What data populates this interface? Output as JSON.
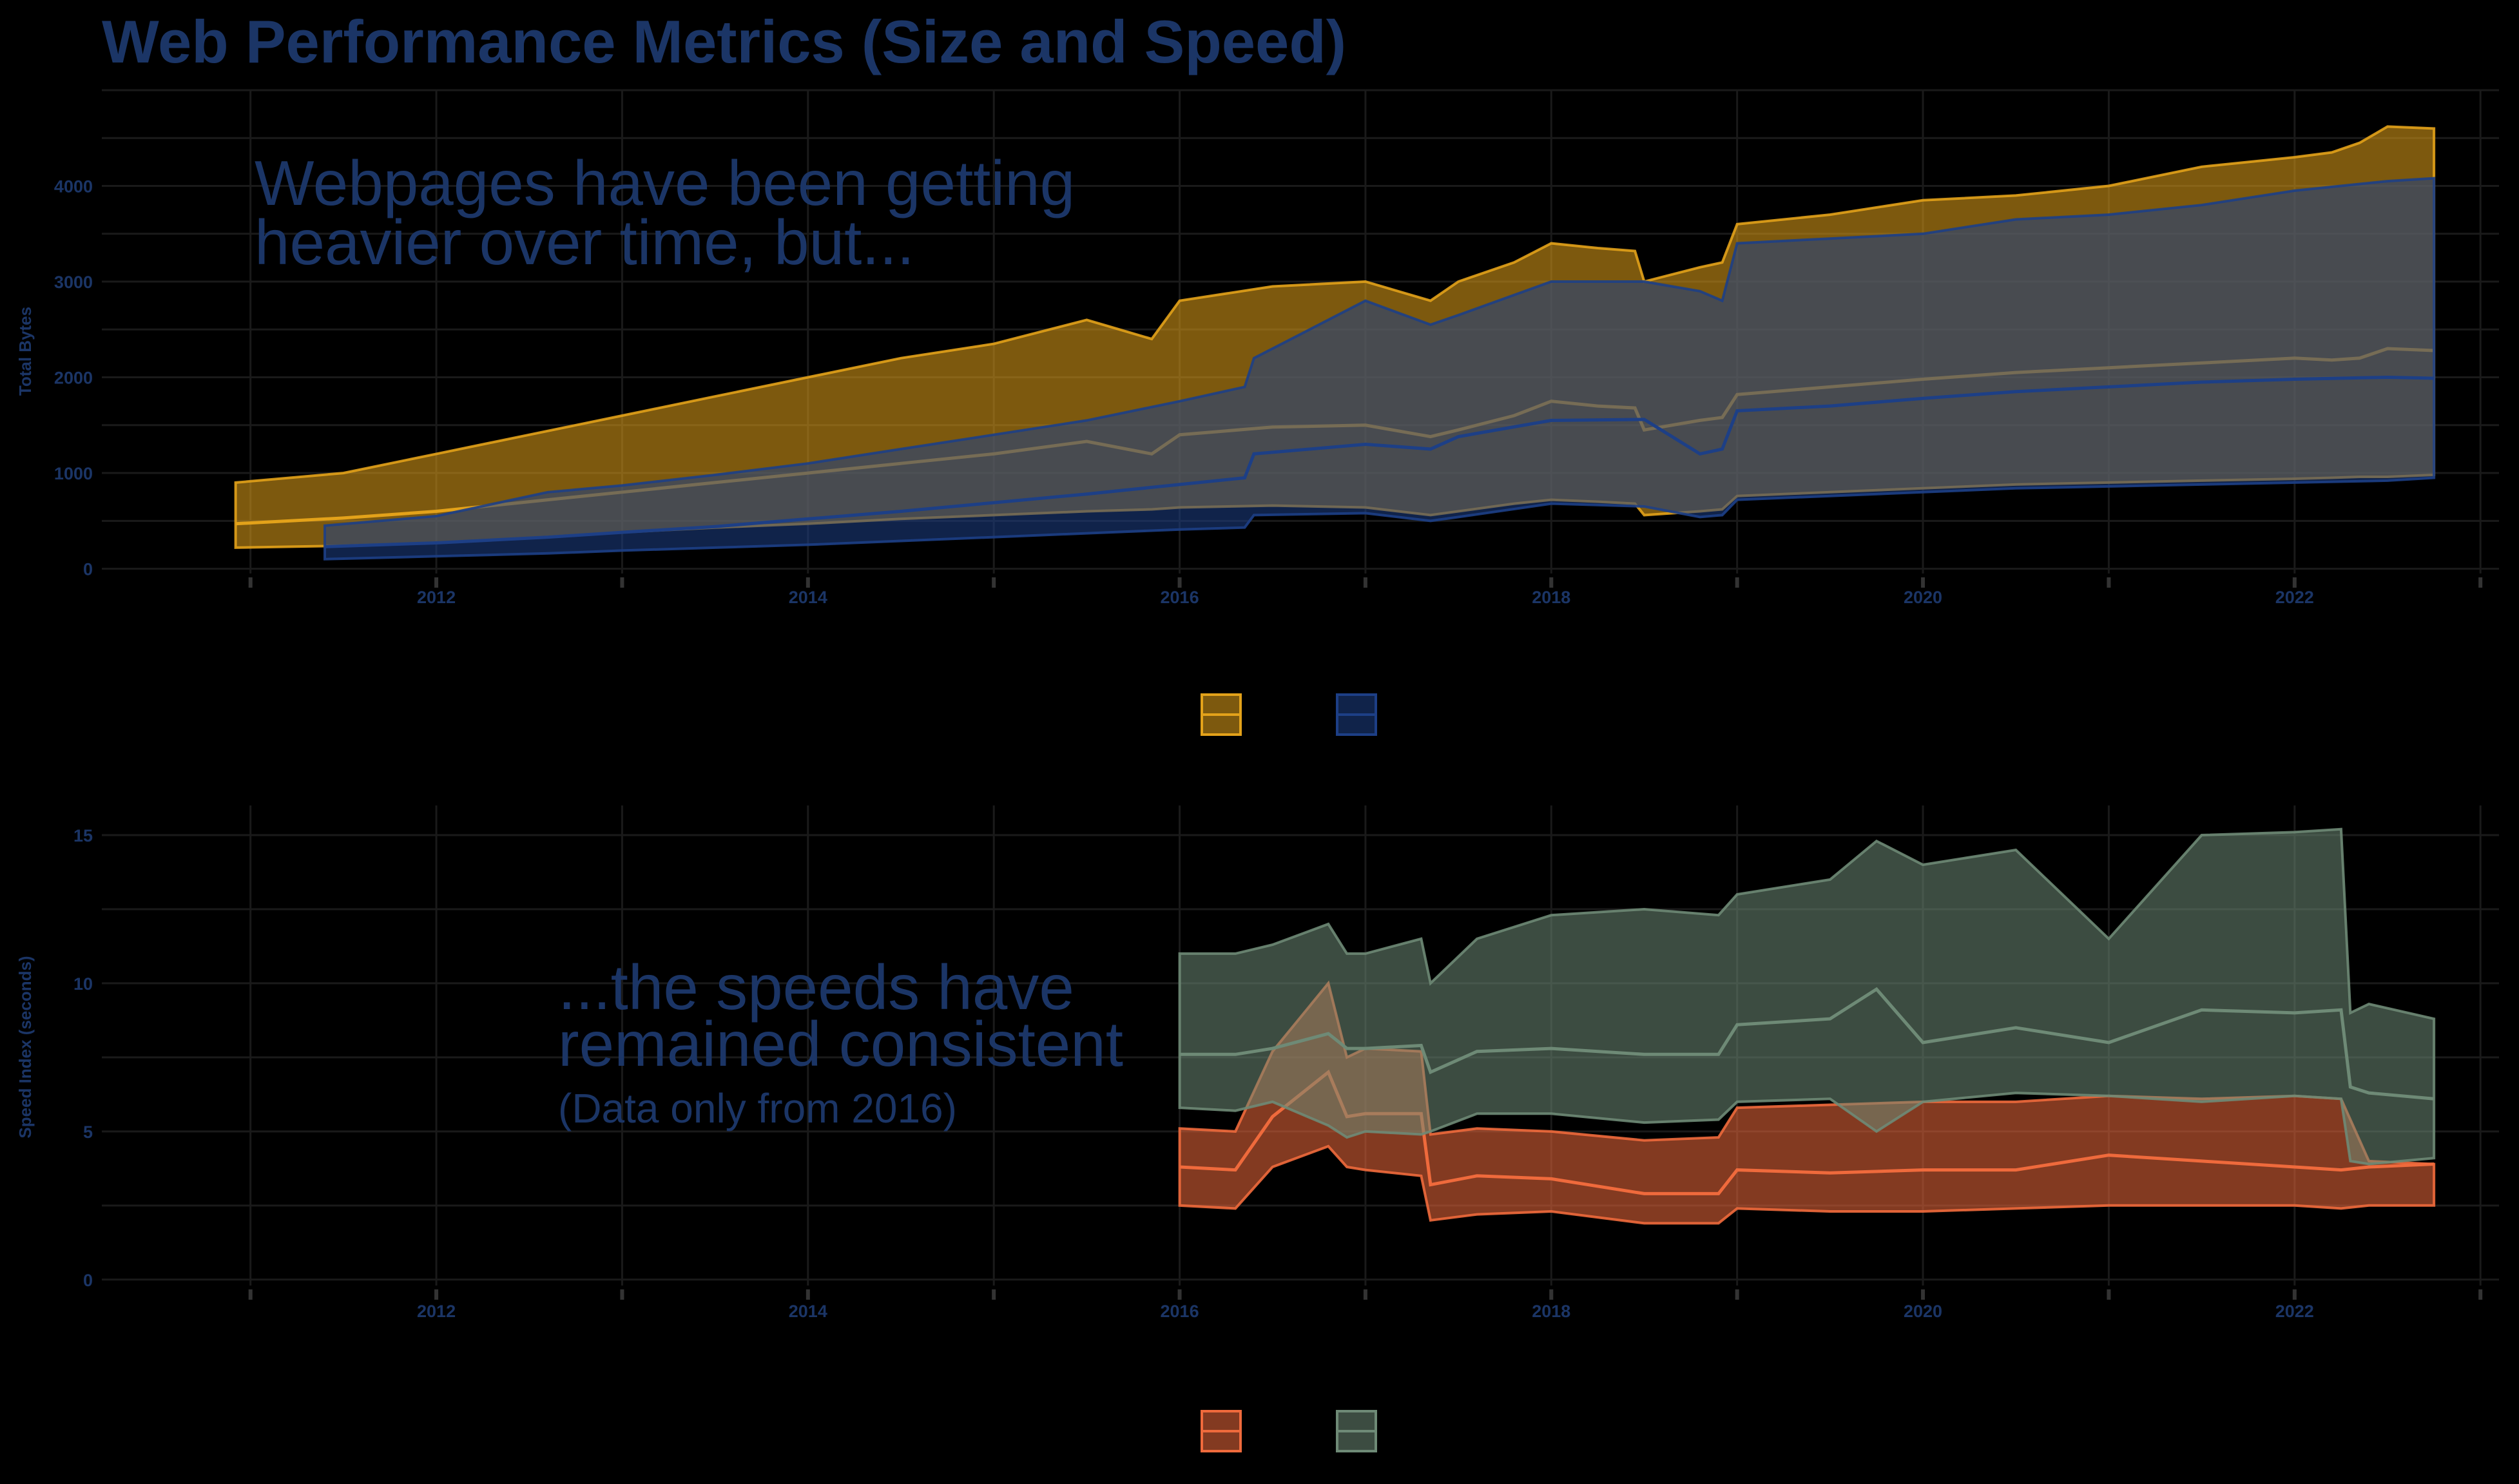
{
  "title": "Web Performance Metrics (Size and Speed)",
  "colors": {
    "background": "#000000",
    "text": "#1b3566",
    "grid": "#1a1a1a",
    "desktop_bytes": "#e3a21a",
    "mobile_bytes": "#1d3f86",
    "desktop_speed": "#ef6a3c",
    "mobile_speed": "#6e8a76"
  },
  "chart_data": [
    {
      "type": "area",
      "subtype": "ribbon-with-median",
      "ylabel": "Total Bytes",
      "xlabel": "",
      "xlim": [
        2010.2,
        2023.1
      ],
      "ylim": [
        -50,
        5000
      ],
      "x_ticks": [
        2012,
        2014,
        2016,
        2018,
        2020,
        2022
      ],
      "x_tick_labels": [
        "2012",
        "2014",
        "2016",
        "2018",
        "2020",
        "2022"
      ],
      "y_ticks": [
        0,
        1000,
        2000,
        3000,
        4000
      ],
      "y_tick_labels": [
        "0",
        "1000",
        "2000",
        "3000",
        "4000"
      ],
      "grid": true,
      "legend": "bottom-center",
      "annotation": [
        "Webpages have been getting",
        "heavier over time, but..."
      ],
      "series": [
        {
          "color": "#e3a21a",
          "x": [
            2010.92,
            2011.5,
            2012.0,
            2012.5,
            2013.0,
            2013.5,
            2014.0,
            2014.5,
            2015.0,
            2015.5,
            2015.85,
            2016.0,
            2016.5,
            2017.0,
            2017.35,
            2017.5,
            2017.8,
            2018.0,
            2018.25,
            2018.45,
            2018.5,
            2018.8,
            2018.92,
            2019.0,
            2019.5,
            2020.0,
            2020.5,
            2021.0,
            2021.5,
            2022.0,
            2022.2,
            2022.35,
            2022.5,
            2022.75
          ],
          "lo": [
            220,
            240,
            270,
            320,
            380,
            430,
            470,
            520,
            560,
            600,
            620,
            640,
            660,
            640,
            560,
            600,
            680,
            720,
            700,
            680,
            560,
            600,
            620,
            760,
            800,
            840,
            880,
            900,
            920,
            940,
            950,
            960,
            960,
            980
          ],
          "median": [
            470,
            530,
            600,
            700,
            800,
            900,
            1000,
            1100,
            1200,
            1330,
            1200,
            1400,
            1480,
            1500,
            1380,
            1450,
            1600,
            1750,
            1700,
            1680,
            1450,
            1550,
            1580,
            1820,
            1900,
            1980,
            2050,
            2100,
            2150,
            2200,
            2180,
            2200,
            2300,
            2280
          ],
          "hi": [
            900,
            1000,
            1200,
            1400,
            1600,
            1800,
            2000,
            2200,
            2350,
            2600,
            2400,
            2800,
            2950,
            3000,
            2800,
            3000,
            3200,
            3400,
            3350,
            3320,
            3000,
            3150,
            3200,
            3600,
            3700,
            3850,
            3900,
            4000,
            4200,
            4300,
            4350,
            4450,
            4620,
            4600
          ]
        },
        {
          "color": "#1d3f86",
          "x": [
            2011.4,
            2012.0,
            2012.6,
            2013.0,
            2013.5,
            2014.0,
            2014.5,
            2015.0,
            2015.5,
            2016.0,
            2016.35,
            2016.4,
            2017.0,
            2017.35,
            2017.5,
            2018.0,
            2018.5,
            2018.8,
            2018.92,
            2019.0,
            2019.5,
            2020.0,
            2020.5,
            2021.0,
            2021.5,
            2022.0,
            2022.5,
            2022.75
          ],
          "lo": [
            100,
            130,
            160,
            190,
            220,
            250,
            290,
            330,
            370,
            410,
            430,
            560,
            580,
            500,
            540,
            680,
            650,
            540,
            560,
            720,
            760,
            800,
            840,
            860,
            880,
            900,
            920,
            950
          ],
          "median": [
            230,
            270,
            330,
            380,
            440,
            520,
            600,
            690,
            780,
            880,
            950,
            1200,
            1300,
            1250,
            1380,
            1550,
            1560,
            1200,
            1250,
            1650,
            1700,
            1780,
            1850,
            1900,
            1950,
            1980,
            2000,
            1990
          ],
          "hi": [
            450,
            550,
            800,
            870,
            980,
            1100,
            1250,
            1400,
            1550,
            1750,
            1900,
            2200,
            2800,
            2550,
            2650,
            3000,
            3000,
            2900,
            2800,
            3400,
            3450,
            3500,
            3650,
            3700,
            3800,
            3950,
            4050,
            4080
          ]
        }
      ]
    },
    {
      "type": "area",
      "subtype": "ribbon-with-median",
      "ylabel": "Speed Index (seconds)",
      "xlabel": "",
      "xlim": [
        2010.2,
        2023.1
      ],
      "ylim": [
        -0.2,
        16
      ],
      "x_ticks": [
        2012,
        2014,
        2016,
        2018,
        2020,
        2022
      ],
      "x_tick_labels": [
        "2012",
        "2014",
        "2016",
        "2018",
        "2020",
        "2022"
      ],
      "y_ticks": [
        0,
        5,
        10,
        15
      ],
      "y_tick_labels": [
        "0",
        "5",
        "10",
        "15"
      ],
      "grid": true,
      "legend": "bottom-center",
      "annotation": [
        "...the speeds have",
        "remained consistent"
      ],
      "annotation_note": "(Data only from 2016)",
      "series": [
        {
          "color": "#ef6a3c",
          "x": [
            2016.0,
            2016.3,
            2016.5,
            2016.8,
            2016.9,
            2017.0,
            2017.3,
            2017.35,
            2017.6,
            2018.0,
            2018.5,
            2018.9,
            2019.0,
            2019.5,
            2020.0,
            2020.5,
            2021.0,
            2021.5,
            2022.0,
            2022.25,
            2022.4,
            2022.75
          ],
          "lo": [
            2.5,
            2.4,
            3.8,
            4.5,
            3.8,
            3.7,
            3.5,
            2.0,
            2.2,
            2.3,
            1.9,
            1.9,
            2.4,
            2.3,
            2.3,
            2.4,
            2.5,
            2.5,
            2.5,
            2.4,
            2.5,
            2.5
          ],
          "median": [
            3.8,
            3.7,
            5.5,
            7.0,
            5.5,
            5.6,
            5.6,
            3.2,
            3.5,
            3.4,
            2.9,
            2.9,
            3.7,
            3.6,
            3.7,
            3.7,
            4.2,
            4.0,
            3.8,
            3.7,
            3.8,
            3.9
          ],
          "hi": [
            5.1,
            5.0,
            7.7,
            10.0,
            7.5,
            7.8,
            7.7,
            4.9,
            5.1,
            5.0,
            4.7,
            4.8,
            5.8,
            5.9,
            6.0,
            6.0,
            6.2,
            6.1,
            6.2,
            6.1,
            4.0,
            3.9
          ]
        },
        {
          "color": "#6e8a76",
          "x": [
            2016.0,
            2016.3,
            2016.5,
            2016.8,
            2016.9,
            2017.0,
            2017.3,
            2017.35,
            2017.6,
            2018.0,
            2018.5,
            2018.9,
            2019.0,
            2019.5,
            2019.75,
            2020.0,
            2020.5,
            2021.0,
            2021.5,
            2022.0,
            2022.25,
            2022.3,
            2022.4,
            2022.75
          ],
          "lo": [
            5.8,
            5.7,
            6.0,
            5.2,
            4.8,
            5.0,
            4.9,
            5.0,
            5.6,
            5.6,
            5.3,
            5.4,
            6.0,
            6.1,
            5.0,
            6.0,
            6.3,
            6.2,
            6.0,
            6.2,
            6.1,
            4.0,
            3.9,
            4.1
          ],
          "median": [
            7.6,
            7.6,
            7.8,
            8.3,
            7.8,
            7.8,
            7.9,
            7.0,
            7.7,
            7.8,
            7.6,
            7.6,
            8.6,
            8.8,
            9.8,
            8.0,
            8.5,
            8.0,
            9.1,
            9.0,
            9.1,
            6.5,
            6.3,
            6.1
          ],
          "hi": [
            11.0,
            11.0,
            11.3,
            12.0,
            11.0,
            11.0,
            11.5,
            10.0,
            11.5,
            12.3,
            12.5,
            12.3,
            13.0,
            13.5,
            14.8,
            14.0,
            14.5,
            11.5,
            15.0,
            15.1,
            15.2,
            9.0,
            9.3,
            8.8
          ]
        }
      ]
    }
  ]
}
